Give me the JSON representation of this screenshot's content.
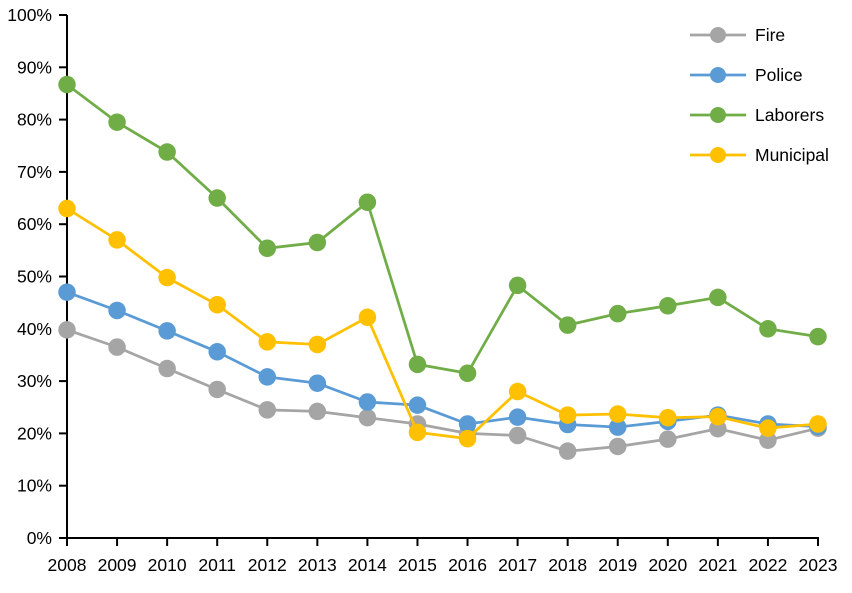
{
  "chart_data": {
    "type": "line",
    "title": "",
    "xlabel": "",
    "ylabel": "",
    "x": [
      2008,
      2009,
      2010,
      2011,
      2012,
      2013,
      2014,
      2015,
      2016,
      2017,
      2018,
      2019,
      2020,
      2021,
      2022,
      2023
    ],
    "xtick_labels": [
      "2008",
      "2009",
      "2010",
      "2011",
      "2012",
      "2013",
      "2014",
      "2015",
      "2016",
      "2017",
      "2018",
      "2019",
      "2020",
      "2021",
      "2022",
      "2023"
    ],
    "ytick_labels": [
      "0%",
      "10%",
      "20%",
      "30%",
      "40%",
      "50%",
      "60%",
      "70%",
      "80%",
      "90%",
      "100%"
    ],
    "ylim": [
      0,
      100
    ],
    "grid": false,
    "legend_position": "top-right",
    "axis_color": "#000000",
    "series": [
      {
        "name": "Fire",
        "color": "#A5A5A5",
        "values": [
          39.8,
          36.5,
          32.4,
          28.4,
          24.5,
          24.2,
          23.0,
          21.8,
          20.0,
          19.6,
          16.6,
          17.5,
          18.9,
          20.9,
          18.7,
          21.0
        ]
      },
      {
        "name": "Police",
        "color": "#5B9BD5",
        "values": [
          47.0,
          43.5,
          39.6,
          35.6,
          30.8,
          29.6,
          26.0,
          25.4,
          21.8,
          23.1,
          21.7,
          21.2,
          22.3,
          23.5,
          21.8,
          21.3
        ]
      },
      {
        "name": "Laborers",
        "color": "#70AD47",
        "values": [
          86.7,
          79.5,
          73.8,
          65.0,
          55.4,
          56.5,
          64.2,
          33.2,
          31.5,
          48.3,
          40.7,
          42.9,
          44.4,
          46.0,
          40.0,
          38.5
        ]
      },
      {
        "name": "Municipal",
        "color": "#FFC000",
        "values": [
          63.0,
          57.0,
          49.8,
          44.6,
          37.5,
          37.0,
          42.2,
          20.2,
          19.0,
          28.0,
          23.5,
          23.7,
          23.0,
          23.2,
          21.0,
          21.8
        ]
      }
    ]
  }
}
